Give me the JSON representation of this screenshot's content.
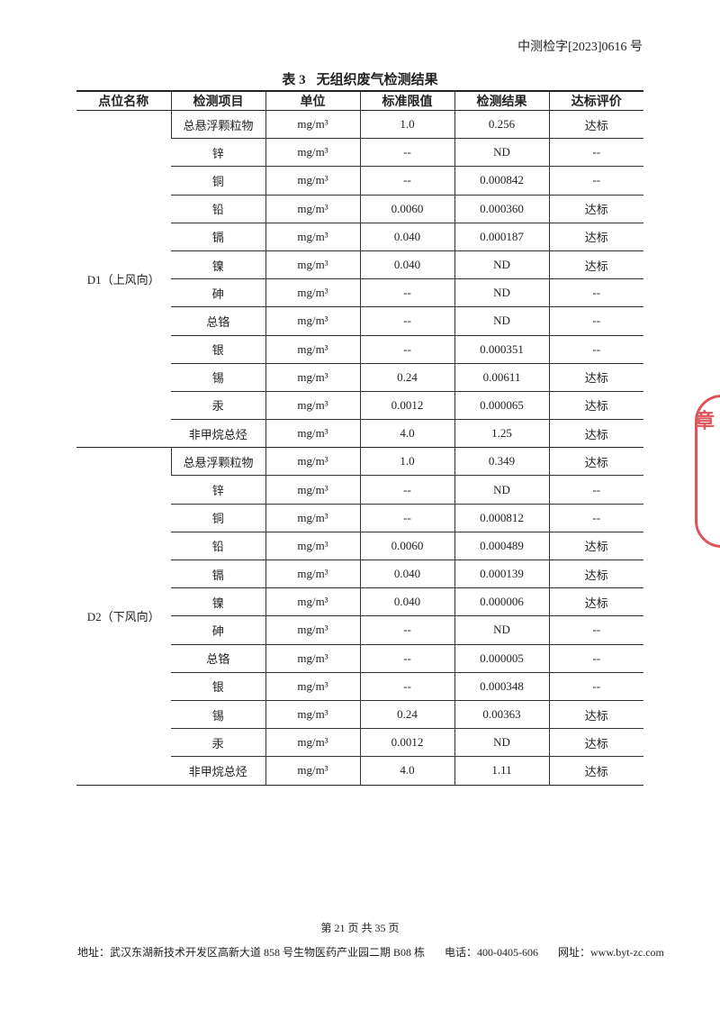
{
  "header": {
    "doc_number": "中测检字[2023]0616 号"
  },
  "table": {
    "caption_no": "表 3",
    "caption": "无组织废气检测结果",
    "columns": [
      "点位名称",
      "检测项目",
      "单位",
      "标准限值",
      "检测结果",
      "达标评价"
    ],
    "groups": [
      {
        "site": "D1（上风向）",
        "rows": [
          [
            "总悬浮颗粒物",
            "mg/m³",
            "1.0",
            "0.256",
            "达标"
          ],
          [
            "锌",
            "mg/m³",
            "--",
            "ND",
            "--"
          ],
          [
            "铜",
            "mg/m³",
            "--",
            "0.000842",
            "--"
          ],
          [
            "铅",
            "mg/m³",
            "0.0060",
            "0.000360",
            "达标"
          ],
          [
            "镉",
            "mg/m³",
            "0.040",
            "0.000187",
            "达标"
          ],
          [
            "镍",
            "mg/m³",
            "0.040",
            "ND",
            "达标"
          ],
          [
            "砷",
            "mg/m³",
            "--",
            "ND",
            "--"
          ],
          [
            "总铬",
            "mg/m³",
            "--",
            "ND",
            "--"
          ],
          [
            "银",
            "mg/m³",
            "--",
            "0.000351",
            "--"
          ],
          [
            "锡",
            "mg/m³",
            "0.24",
            "0.00611",
            "达标"
          ],
          [
            "汞",
            "mg/m³",
            "0.0012",
            "0.000065",
            "达标"
          ],
          [
            "非甲烷总烃",
            "mg/m³",
            "4.0",
            "1.25",
            "达标"
          ]
        ]
      },
      {
        "site": "D2（下风向）",
        "rows": [
          [
            "总悬浮颗粒物",
            "mg/m³",
            "1.0",
            "0.349",
            "达标"
          ],
          [
            "锌",
            "mg/m³",
            "--",
            "ND",
            "--"
          ],
          [
            "铜",
            "mg/m³",
            "--",
            "0.000812",
            "--"
          ],
          [
            "铅",
            "mg/m³",
            "0.0060",
            "0.000489",
            "达标"
          ],
          [
            "镉",
            "mg/m³",
            "0.040",
            "0.000139",
            "达标"
          ],
          [
            "镍",
            "mg/m³",
            "0.040",
            "0.000006",
            "达标"
          ],
          [
            "砷",
            "mg/m³",
            "--",
            "ND",
            "--"
          ],
          [
            "总铬",
            "mg/m³",
            "--",
            "0.000005",
            "--"
          ],
          [
            "银",
            "mg/m³",
            "--",
            "0.000348",
            "--"
          ],
          [
            "锡",
            "mg/m³",
            "0.24",
            "0.00363",
            "达标"
          ],
          [
            "汞",
            "mg/m³",
            "0.0012",
            "ND",
            "达标"
          ],
          [
            "非甲烷总烃",
            "mg/m³",
            "4.0",
            "1.11",
            "达标"
          ]
        ]
      }
    ]
  },
  "footer": {
    "page": "第 21 页 共 35 页",
    "address": "地址：武汉东湖新技术开发区高新大道 858 号生物医药产业园二期 B08 栋",
    "phone": "电话：400-0405-606",
    "website": "网址：www.byt-zc.com"
  },
  "stamp": {
    "text": "检验检测专用章",
    "color": "#d9363e"
  }
}
